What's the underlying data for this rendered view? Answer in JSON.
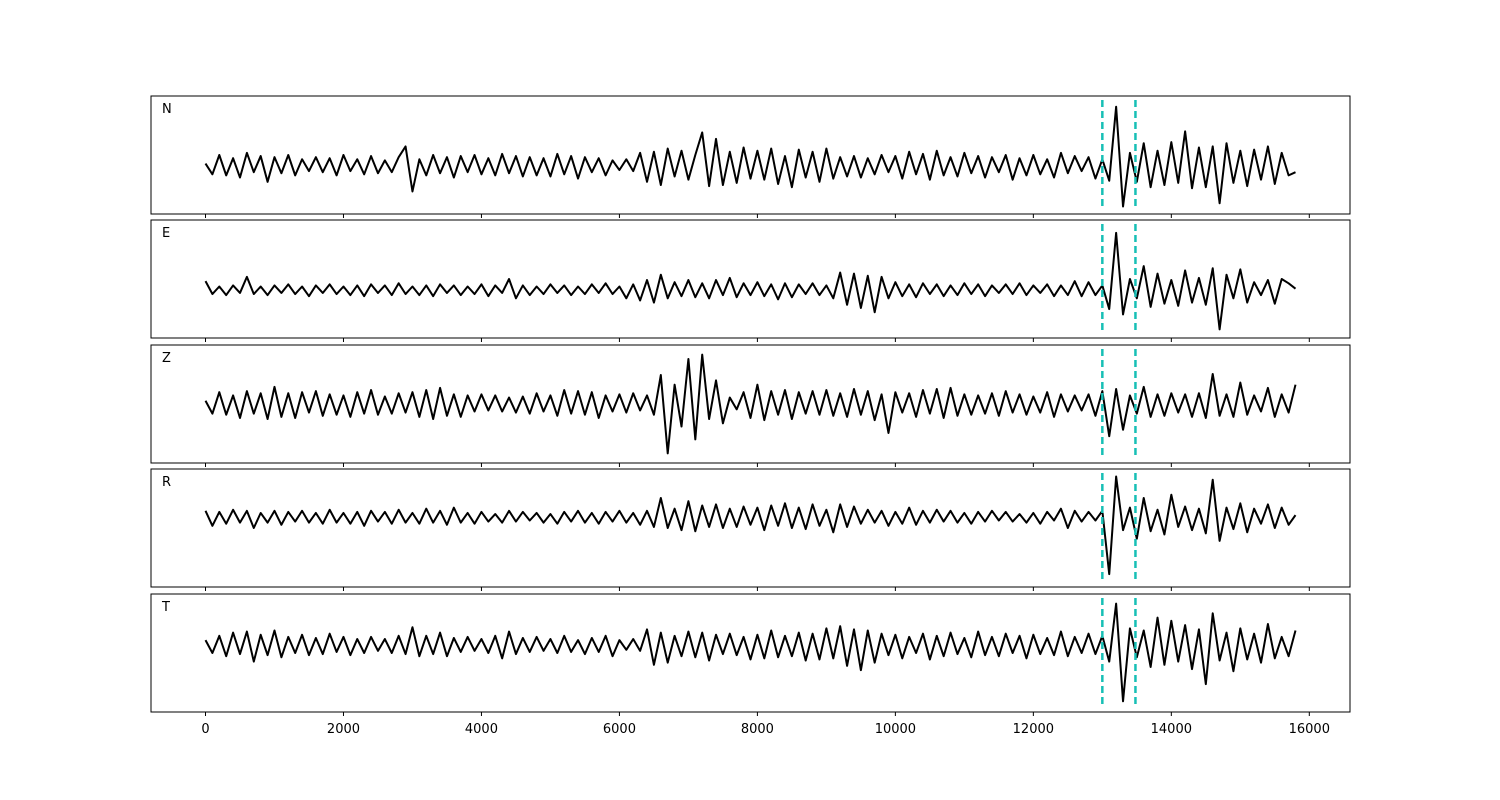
{
  "chart_data": {
    "type": "line",
    "line_color": "#000000",
    "vline_color": "#17bfb5",
    "xlim": [
      -790,
      16590
    ],
    "xticks": [
      0,
      2000,
      4000,
      6000,
      8000,
      10000,
      12000,
      14000,
      16000
    ],
    "vlines": [
      13000,
      13480
    ],
    "x": [
      0,
      100,
      200,
      300,
      400,
      500,
      600,
      700,
      800,
      900,
      1000,
      1100,
      1200,
      1300,
      1400,
      1500,
      1600,
      1700,
      1800,
      1900,
      2000,
      2100,
      2200,
      2300,
      2400,
      2500,
      2600,
      2700,
      2800,
      2900,
      3000,
      3100,
      3200,
      3300,
      3400,
      3500,
      3600,
      3700,
      3800,
      3900,
      4000,
      4100,
      4200,
      4300,
      4400,
      4500,
      4600,
      4700,
      4800,
      4900,
      5000,
      5100,
      5200,
      5300,
      5400,
      5500,
      5600,
      5700,
      5800,
      5900,
      6000,
      6100,
      6200,
      6300,
      6400,
      6500,
      6600,
      6700,
      6800,
      6900,
      7000,
      7100,
      7200,
      7300,
      7400,
      7500,
      7600,
      7700,
      7800,
      7900,
      8000,
      8100,
      8200,
      8300,
      8400,
      8500,
      8600,
      8700,
      8800,
      8900,
      9000,
      9100,
      9200,
      9300,
      9400,
      9500,
      9600,
      9700,
      9800,
      9900,
      10000,
      10100,
      10200,
      10300,
      10400,
      10500,
      10600,
      10700,
      10800,
      10900,
      11000,
      11100,
      11200,
      11300,
      11400,
      11500,
      11600,
      11700,
      11800,
      11900,
      12000,
      12100,
      12200,
      12300,
      12400,
      12500,
      12600,
      12700,
      12800,
      12900,
      13000,
      13100,
      13200,
      13300,
      13400,
      13500,
      13600,
      13700,
      13800,
      13900,
      14000,
      14100,
      14200,
      14300,
      14400,
      14500,
      14600,
      14700,
      14800,
      14900,
      15000,
      15100,
      15200,
      15300,
      15400,
      15500,
      15600,
      15700,
      15800
    ],
    "panels": [
      {
        "label": "N",
        "ylim": [
          -4.5,
          6.5
        ],
        "values": [
          0.2,
          -0.8,
          1.0,
          -0.9,
          0.7,
          -1.1,
          1.2,
          -0.6,
          0.9,
          -1.5,
          0.8,
          -0.7,
          1.0,
          -0.9,
          0.6,
          -0.5,
          0.8,
          -0.6,
          0.7,
          -0.9,
          1.0,
          -0.5,
          0.6,
          -0.8,
          0.9,
          -0.7,
          0.5,
          -0.6,
          0.8,
          1.8,
          -2.4,
          0.6,
          -0.9,
          1.0,
          -0.7,
          0.8,
          -1.1,
          0.9,
          -0.6,
          1.0,
          -0.8,
          0.7,
          -0.9,
          1.1,
          -0.7,
          0.9,
          -1.0,
          0.8,
          -0.9,
          0.7,
          -1.0,
          1.1,
          -0.8,
          0.9,
          -1.2,
          0.8,
          -0.6,
          0.7,
          -0.9,
          0.5,
          -0.4,
          0.6,
          -0.5,
          1.2,
          -1.5,
          1.3,
          -1.8,
          1.6,
          -1.0,
          1.4,
          -1.3,
          1.0,
          3.1,
          -1.9,
          2.5,
          -1.8,
          1.3,
          -1.6,
          1.7,
          -1.2,
          1.4,
          -1.3,
          1.6,
          -1.7,
          0.9,
          -2.0,
          1.5,
          -1.1,
          1.3,
          -1.5,
          1.6,
          -1.2,
          0.8,
          -1.0,
          0.9,
          -1.1,
          0.7,
          -0.8,
          1.0,
          -0.6,
          0.9,
          -1.2,
          1.3,
          -0.8,
          1.1,
          -1.3,
          1.4,
          -0.9,
          0.8,
          -1.0,
          1.2,
          -0.7,
          0.9,
          -1.1,
          0.8,
          -0.6,
          1.0,
          -1.3,
          0.7,
          -0.9,
          1.0,
          -0.8,
          0.6,
          -1.1,
          1.2,
          -0.7,
          0.9,
          -0.5,
          0.8,
          -1.2,
          0.6,
          -1.4,
          5.5,
          -3.8,
          1.2,
          -1.5,
          2.1,
          -2.0,
          1.4,
          -1.8,
          2.2,
          -1.6,
          3.2,
          -2.1,
          1.7,
          -2.0,
          1.8,
          -3.5,
          2.1,
          -1.6,
          1.4,
          -1.9,
          1.5,
          -1.3,
          1.8,
          -1.7,
          1.2,
          -0.9,
          -0.6
        ]
      },
      {
        "label": "E",
        "ylim": [
          -4.5,
          6.5
        ],
        "values": [
          0.8,
          -0.4,
          0.3,
          -0.5,
          0.4,
          -0.3,
          1.2,
          -0.4,
          0.3,
          -0.5,
          0.4,
          -0.3,
          0.5,
          -0.4,
          0.3,
          -0.6,
          0.4,
          -0.3,
          0.5,
          -0.4,
          0.3,
          -0.5,
          0.4,
          -0.6,
          0.5,
          -0.3,
          0.4,
          -0.5,
          0.6,
          -0.4,
          0.3,
          -0.5,
          0.4,
          -0.6,
          0.5,
          -0.3,
          0.4,
          -0.5,
          0.3,
          -0.4,
          0.5,
          -0.6,
          0.4,
          -0.3,
          1.0,
          -0.8,
          0.4,
          -0.5,
          0.3,
          -0.4,
          0.5,
          -0.3,
          0.4,
          -0.5,
          0.3,
          -0.4,
          0.5,
          -0.3,
          0.6,
          -0.4,
          0.3,
          -0.8,
          0.5,
          -1.0,
          0.9,
          -1.2,
          1.4,
          -0.8,
          0.7,
          -0.6,
          0.9,
          -0.7,
          0.6,
          -0.8,
          0.9,
          -0.5,
          1.1,
          -0.7,
          0.6,
          -0.5,
          0.7,
          -0.6,
          0.5,
          -0.9,
          0.6,
          -0.7,
          0.5,
          -0.4,
          0.6,
          -0.5,
          0.4,
          -0.8,
          1.6,
          -1.4,
          1.5,
          -1.7,
          1.3,
          -2.1,
          1.2,
          -0.8,
          0.7,
          -0.6,
          0.5,
          -0.7,
          0.6,
          -0.4,
          0.5,
          -0.6,
          0.4,
          -0.5,
          0.6,
          -0.4,
          0.5,
          -0.6,
          0.4,
          -0.3,
          0.5,
          -0.4,
          0.6,
          -0.5,
          0.4,
          -0.3,
          0.5,
          -0.6,
          0.4,
          -0.5,
          0.8,
          -0.6,
          0.7,
          -0.5,
          0.4,
          -1.8,
          5.3,
          -2.3,
          1.0,
          -0.8,
          2.2,
          -1.6,
          1.5,
          -1.3,
          0.9,
          -1.5,
          1.8,
          -1.2,
          1.1,
          -1.4,
          2.0,
          -3.7,
          1.4,
          -0.8,
          1.9,
          -1.2,
          0.7,
          -0.5,
          0.9,
          -1.3,
          1.0,
          0.6,
          0.1
        ]
      },
      {
        "label": "Z",
        "ylim": [
          -5.5,
          5.5
        ],
        "values": [
          0.3,
          -0.9,
          1.1,
          -1.0,
          0.8,
          -1.3,
          1.2,
          -0.9,
          1.0,
          -1.4,
          1.6,
          -1.2,
          1.0,
          -1.3,
          1.1,
          -0.8,
          1.2,
          -1.1,
          0.9,
          -1.0,
          0.8,
          -1.2,
          1.1,
          -0.9,
          1.3,
          -1.0,
          0.7,
          -0.9,
          1.0,
          -0.8,
          1.1,
          -1.2,
          1.3,
          -1.4,
          1.5,
          -1.1,
          0.9,
          -1.2,
          0.8,
          -0.7,
          0.9,
          -0.6,
          0.8,
          -0.7,
          0.6,
          -0.8,
          0.7,
          -0.9,
          1.0,
          -0.7,
          0.8,
          -1.1,
          1.3,
          -0.9,
          1.2,
          -1.0,
          1.1,
          -1.3,
          0.8,
          -0.7,
          0.9,
          -0.8,
          1.0,
          -0.6,
          0.8,
          -1.0,
          2.7,
          -4.6,
          1.8,
          -2.1,
          4.2,
          -3.3,
          4.6,
          -1.4,
          2.2,
          -1.8,
          0.6,
          -0.5,
          1.1,
          -1.3,
          1.8,
          -1.5,
          1.2,
          -1.0,
          1.3,
          -1.4,
          1.1,
          -0.9,
          1.2,
          -1.0,
          1.3,
          -1.1,
          1.0,
          -1.2,
          1.4,
          -1.0,
          1.2,
          -1.5,
          0.9,
          -2.7,
          1.1,
          -0.8,
          1.0,
          -1.2,
          1.3,
          -0.9,
          1.4,
          -1.3,
          1.5,
          -1.1,
          0.9,
          -1.0,
          0.8,
          -0.9,
          1.0,
          -1.1,
          1.2,
          -0.8,
          0.9,
          -1.0,
          0.7,
          -0.8,
          1.1,
          -1.2,
          0.9,
          -0.7,
          0.8,
          -0.6,
          0.9,
          -1.1,
          1.2,
          -3.0,
          1.4,
          -2.4,
          0.8,
          -0.9,
          1.6,
          -1.2,
          0.9,
          -1.1,
          1.0,
          -0.8,
          0.9,
          -1.2,
          1.0,
          -1.3,
          2.8,
          -1.1,
          0.9,
          -1.2,
          2.0,
          -1.0,
          0.8,
          -0.7,
          1.5,
          -1.2,
          0.9,
          -0.8,
          1.8
        ]
      },
      {
        "label": "R",
        "ylim": [
          -6.5,
          4.5
        ],
        "values": [
          0.6,
          -0.8,
          0.5,
          -0.6,
          0.7,
          -0.5,
          0.6,
          -1.0,
          0.4,
          -0.5,
          0.6,
          -0.7,
          0.5,
          -0.4,
          0.6,
          -0.5,
          0.4,
          -0.6,
          0.7,
          -0.5,
          0.4,
          -0.6,
          0.5,
          -0.8,
          0.6,
          -0.4,
          0.5,
          -0.6,
          0.7,
          -0.5,
          0.4,
          -0.6,
          0.8,
          -0.5,
          0.6,
          -0.7,
          0.9,
          -0.5,
          0.4,
          -0.6,
          0.5,
          -0.4,
          0.3,
          -0.5,
          0.6,
          -0.4,
          0.5,
          -0.3,
          0.4,
          -0.5,
          0.3,
          -0.6,
          0.5,
          -0.4,
          0.6,
          -0.5,
          0.4,
          -0.6,
          0.5,
          -0.4,
          0.6,
          -0.5,
          0.4,
          -0.7,
          0.6,
          -0.9,
          1.8,
          -1.0,
          0.8,
          -1.2,
          1.5,
          -1.3,
          1.1,
          -0.9,
          1.2,
          -1.0,
          0.8,
          -0.9,
          1.0,
          -0.7,
          0.9,
          -1.2,
          1.1,
          -0.8,
          1.3,
          -1.0,
          0.9,
          -1.1,
          1.2,
          -0.8,
          0.7,
          -1.4,
          1.2,
          -0.9,
          1.0,
          -0.6,
          0.7,
          -0.5,
          0.6,
          -0.8,
          0.5,
          -0.6,
          0.9,
          -0.7,
          0.6,
          -0.5,
          0.7,
          -0.4,
          0.6,
          -0.5,
          0.4,
          -0.6,
          0.5,
          -0.4,
          0.6,
          -0.3,
          0.5,
          -0.4,
          0.3,
          -0.5,
          0.4,
          -0.6,
          0.5,
          -0.3,
          0.8,
          -1.0,
          0.6,
          -0.4,
          0.5,
          -0.3,
          0.6,
          -5.3,
          3.8,
          -1.2,
          0.9,
          -2.0,
          1.8,
          -1.3,
          0.7,
          -1.6,
          2.1,
          -0.9,
          1.0,
          -1.2,
          0.8,
          -1.5,
          3.5,
          -2.2,
          0.9,
          -1.1,
          1.3,
          -1.4,
          0.8,
          -0.6,
          1.2,
          -1.0,
          0.9,
          -0.7,
          0.2
        ]
      },
      {
        "label": "T",
        "ylim": [
          -6.2,
          4.8
        ],
        "values": [
          0.5,
          -0.7,
          0.9,
          -1.0,
          1.2,
          -0.8,
          1.3,
          -1.5,
          1.0,
          -0.9,
          1.4,
          -1.1,
          0.8,
          -0.7,
          1.0,
          -0.9,
          0.7,
          -0.8,
          1.1,
          -0.6,
          0.8,
          -0.9,
          0.6,
          -0.7,
          0.8,
          -0.5,
          0.6,
          -0.7,
          0.9,
          -0.8,
          1.7,
          -1.0,
          0.9,
          -0.8,
          1.2,
          -1.0,
          0.7,
          -0.6,
          0.8,
          -0.5,
          0.6,
          -0.7,
          0.9,
          -1.2,
          1.3,
          -0.8,
          0.7,
          -0.6,
          0.8,
          -0.5,
          0.6,
          -0.7,
          0.9,
          -0.6,
          0.5,
          -0.8,
          0.7,
          -0.6,
          0.9,
          -1.0,
          0.5,
          -0.4,
          0.6,
          -0.5,
          1.5,
          -1.8,
          1.2,
          -1.6,
          0.9,
          -1.0,
          1.3,
          -1.1,
          1.2,
          -1.4,
          1.0,
          -0.8,
          1.1,
          -0.9,
          0.8,
          -1.3,
          1.0,
          -1.2,
          1.4,
          -1.1,
          0.9,
          -1.0,
          1.2,
          -1.4,
          1.1,
          -1.3,
          1.6,
          -1.2,
          1.8,
          -1.9,
          1.5,
          -2.3,
          1.4,
          -1.6,
          1.1,
          -0.9,
          1.0,
          -1.2,
          0.8,
          -0.7,
          1.1,
          -1.3,
          0.9,
          -1.0,
          1.2,
          -0.8,
          0.7,
          -1.1,
          1.3,
          -0.9,
          0.8,
          -1.0,
          1.1,
          -0.7,
          0.9,
          -1.2,
          1.0,
          -0.8,
          0.7,
          -0.9,
          1.3,
          -1.0,
          0.8,
          -0.7,
          1.1,
          -0.8,
          0.9,
          -1.5,
          3.9,
          -5.2,
          1.6,
          -1.1,
          1.4,
          -2.0,
          2.6,
          -1.8,
          2.3,
          -1.5,
          1.9,
          -2.2,
          1.5,
          -3.6,
          3.0,
          -1.4,
          1.2,
          -2.4,
          1.6,
          -1.3,
          1.1,
          -1.6,
          2.0,
          -1.2,
          0.8,
          -1.0,
          1.4
        ]
      }
    ]
  }
}
